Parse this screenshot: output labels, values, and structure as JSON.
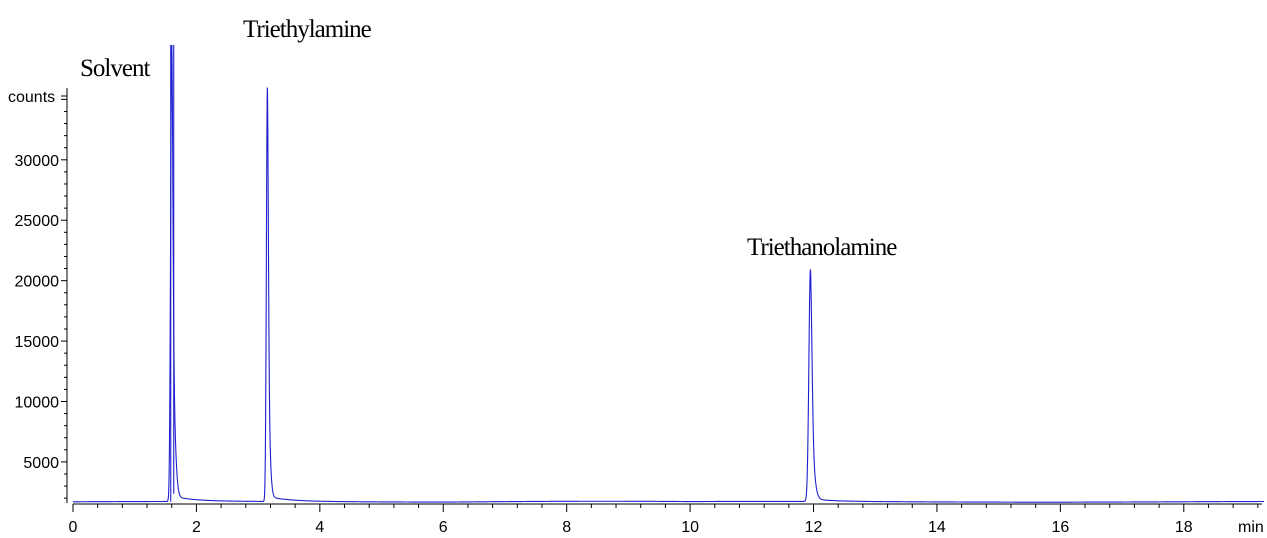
{
  "chart_data": {
    "type": "line",
    "title": "",
    "xlabel": "min",
    "ylabel": "counts",
    "xlim": [
      0,
      19.3
    ],
    "ylim": [
      1600,
      39500
    ],
    "baseline": 1700,
    "x_ticks": [
      0,
      2,
      4,
      6,
      8,
      10,
      12,
      14,
      16,
      18
    ],
    "x_tick_labels": [
      "0",
      "2",
      "4",
      "6",
      "8",
      "10",
      "12",
      "14",
      "16",
      "18"
    ],
    "y_ticks": [
      5000,
      10000,
      15000,
      20000,
      25000,
      30000
    ],
    "y_tick_labels": [
      "5000",
      "10000",
      "15000",
      "20000",
      "25000",
      "30000"
    ],
    "grid": false,
    "series": [
      {
        "color": "#1f1fd0",
        "peaks": [
          {
            "name": "Solvent",
            "x": 1.6,
            "y": 39500
          },
          {
            "name": "Triethylamine",
            "x": 3.15,
            "y": 36000
          },
          {
            "name": "Triethanolamine",
            "x": 11.95,
            "y": 20900
          }
        ]
      }
    ],
    "annotations": [
      {
        "text": "Solvent",
        "x": 1.6
      },
      {
        "text": "Triethylamine",
        "x": 3.15
      },
      {
        "text": "Triethanolamine",
        "x": 11.95
      }
    ]
  }
}
